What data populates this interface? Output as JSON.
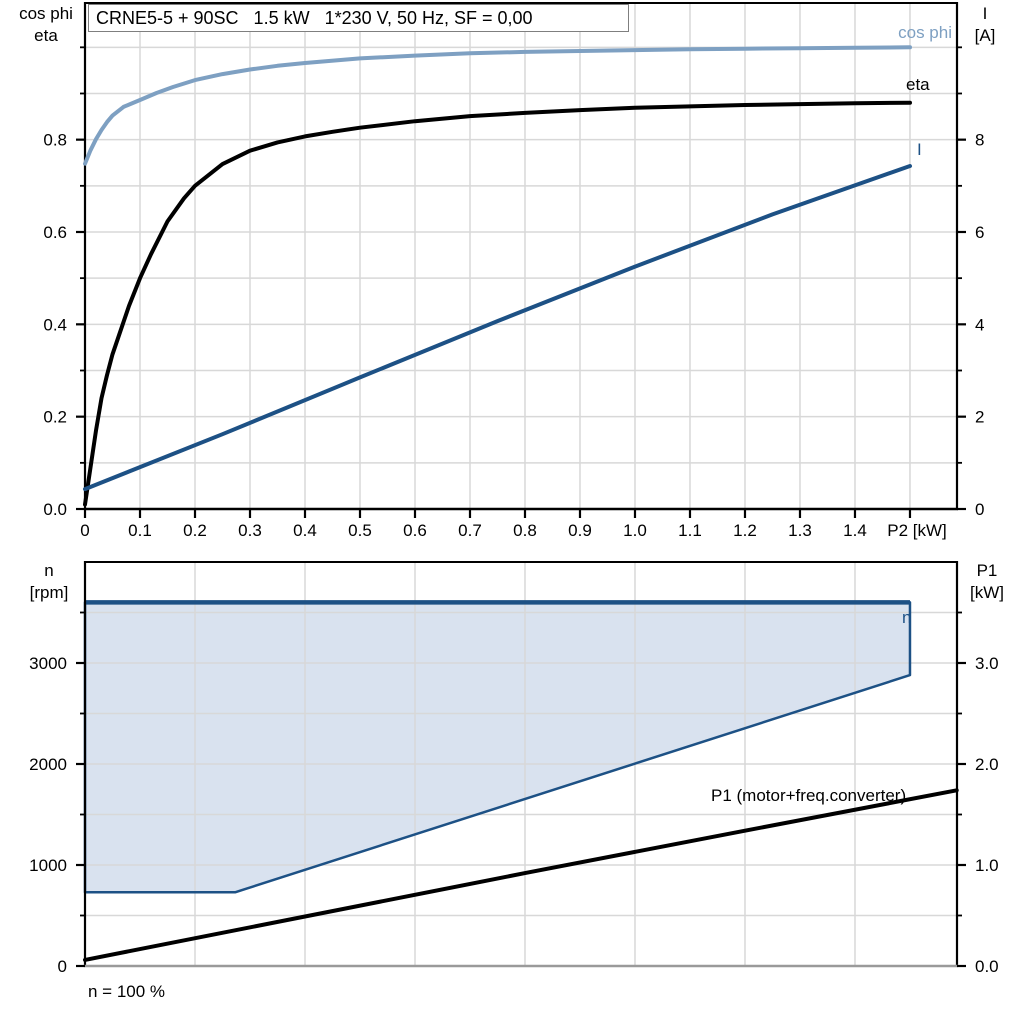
{
  "style": {
    "grid_color": "#d8d8d8",
    "axis_color": "#000000",
    "bottom_axis_color": "#9a9a9a",
    "cos_phi_color": "#7ea0c2",
    "current_color": "#1d5185",
    "eta_color": "#000000",
    "envelope_fill": "#d9e2ef"
  },
  "chart_data": [
    {
      "type": "line",
      "title": "CRNE5-5 + 90SC   1.5 kW   1*230 V, 50 Hz, SF = 0,00",
      "x_axis": {
        "label": "P2 [kW]",
        "min": 0,
        "max": 1.5855,
        "grid_step": 0.1,
        "ticks": [
          [
            0,
            "0"
          ],
          [
            0.1,
            "0.1"
          ],
          [
            0.2,
            "0.2"
          ],
          [
            0.3,
            "0.3"
          ],
          [
            0.4,
            "0.4"
          ],
          [
            0.5,
            "0.5"
          ],
          [
            0.6,
            "0.6"
          ],
          [
            0.7,
            "0.7"
          ],
          [
            0.8,
            "0.8"
          ],
          [
            0.9,
            "0.9"
          ],
          [
            1.0,
            "1.0"
          ],
          [
            1.1,
            "1.1"
          ],
          [
            1.2,
            "1.2"
          ],
          [
            1.3,
            "1.3"
          ],
          [
            1.4,
            "1.4"
          ],
          [
            1.5,
            ""
          ]
        ]
      },
      "y_left": {
        "title_lines": [
          "cos phi",
          "eta"
        ],
        "min": 0,
        "max": 1.096,
        "grid_max": 1.0,
        "minor_step": 0.1,
        "ticks": [
          [
            0,
            "0.0"
          ],
          [
            0.2,
            "0.2"
          ],
          [
            0.4,
            "0.4"
          ],
          [
            0.6,
            "0.6"
          ],
          [
            0.8,
            "0.8"
          ]
        ]
      },
      "y_right": {
        "title_lines": [
          "I",
          "[A]"
        ],
        "min": 0,
        "max": 10.96,
        "grid_max": 10,
        "minor_step": 1,
        "ticks": [
          [
            0,
            "0"
          ],
          [
            2,
            "2"
          ],
          [
            4,
            "4"
          ],
          [
            6,
            "6"
          ],
          [
            8,
            "8"
          ]
        ]
      },
      "series": [
        {
          "id": "cos-phi",
          "name": "cos phi",
          "type": "line",
          "axis": "left",
          "color": "#7ea0c2",
          "width": 4,
          "points": [
            [
              0,
              0.748
            ],
            [
              0.01,
              0.777
            ],
            [
              0.02,
              0.801
            ],
            [
              0.03,
              0.821
            ],
            [
              0.04,
              0.838
            ],
            [
              0.05,
              0.852
            ],
            [
              0.07,
              0.871
            ],
            [
              0.1,
              0.886
            ],
            [
              0.13,
              0.901
            ],
            [
              0.16,
              0.914
            ],
            [
              0.2,
              0.929
            ],
            [
              0.25,
              0.942
            ],
            [
              0.3,
              0.952
            ],
            [
              0.35,
              0.96
            ],
            [
              0.4,
              0.966
            ],
            [
              0.5,
              0.976
            ],
            [
              0.6,
              0.982
            ],
            [
              0.7,
              0.987
            ],
            [
              0.8,
              0.99
            ],
            [
              0.9,
              0.992
            ],
            [
              1.0,
              0.994
            ],
            [
              1.1,
              0.996
            ],
            [
              1.2,
              0.997
            ],
            [
              1.3,
              0.998
            ],
            [
              1.4,
              0.999
            ],
            [
              1.5,
              1.0
            ]
          ]
        },
        {
          "id": "eta",
          "name": "eta",
          "type": "line",
          "axis": "left",
          "color": "#000000",
          "width": 4,
          "points": [
            [
              0,
              0.01
            ],
            [
              0.01,
              0.09
            ],
            [
              0.02,
              0.17
            ],
            [
              0.03,
              0.24
            ],
            [
              0.04,
              0.29
            ],
            [
              0.05,
              0.335
            ],
            [
              0.06,
              0.37
            ],
            [
              0.08,
              0.44
            ],
            [
              0.1,
              0.5
            ],
            [
              0.12,
              0.552
            ],
            [
              0.15,
              0.623
            ],
            [
              0.18,
              0.673
            ],
            [
              0.2,
              0.7
            ],
            [
              0.25,
              0.747
            ],
            [
              0.3,
              0.776
            ],
            [
              0.35,
              0.794
            ],
            [
              0.4,
              0.807
            ],
            [
              0.45,
              0.817
            ],
            [
              0.5,
              0.826
            ],
            [
              0.6,
              0.84
            ],
            [
              0.7,
              0.851
            ],
            [
              0.8,
              0.858
            ],
            [
              0.9,
              0.864
            ],
            [
              1.0,
              0.869
            ],
            [
              1.1,
              0.872
            ],
            [
              1.2,
              0.875
            ],
            [
              1.3,
              0.877
            ],
            [
              1.4,
              0.879
            ],
            [
              1.5,
              0.88
            ]
          ]
        },
        {
          "id": "current",
          "name": "I",
          "type": "line",
          "axis": "right",
          "color": "#1d5185",
          "width": 4,
          "points": [
            [
              0,
              0.43
            ],
            [
              0.25,
              1.62
            ],
            [
              0.5,
              2.85
            ],
            [
              0.75,
              4.07
            ],
            [
              1.0,
              5.25
            ],
            [
              1.25,
              6.38
            ],
            [
              1.5,
              7.43
            ]
          ]
        }
      ]
    },
    {
      "type": "area",
      "annotation": "n = 100 %",
      "x_axis": {
        "label": "",
        "min": 0,
        "max": 1.5855,
        "grid_step": 0.2,
        "ticks": []
      },
      "y_left": {
        "title_lines": [
          "n",
          "[rpm]"
        ],
        "min": 0,
        "max": 4000,
        "grid_max": 3500,
        "minor_step": 500,
        "ticks": [
          [
            0,
            "0"
          ],
          [
            1000,
            "1000"
          ],
          [
            2000,
            "2000"
          ],
          [
            3000,
            "3000"
          ]
        ]
      },
      "y_right": {
        "title_lines": [
          "P1",
          "[kW]"
        ],
        "min": 0,
        "max": 4.0,
        "grid_max": 3.5,
        "minor_step": 0.5,
        "ticks": [
          [
            0,
            "0.0"
          ],
          [
            1,
            "1.0"
          ],
          [
            2,
            "2.0"
          ],
          [
            3,
            "3.0"
          ]
        ]
      },
      "series": [
        {
          "id": "speed-envelope",
          "name": "n",
          "type": "area",
          "axis": "left",
          "color": "#1d5185",
          "fill": "#d9e2ef",
          "width": 2.5,
          "top_edge_width": 4.5,
          "points": [
            [
              0,
              3600
            ],
            [
              1.5,
              3600
            ],
            [
              1.5,
              2880
            ],
            [
              0.273,
              730
            ],
            [
              0,
              730
            ]
          ]
        },
        {
          "id": "p1",
          "name": "P1 (motor+freq.converter)",
          "type": "line",
          "axis": "right",
          "color": "#000000",
          "width": 4,
          "points": [
            [
              0,
              0.06
            ],
            [
              0.4,
              0.49
            ],
            [
              0.8,
              0.92
            ],
            [
              1.2,
              1.34
            ],
            [
              1.585,
              1.74
            ]
          ]
        }
      ]
    }
  ]
}
